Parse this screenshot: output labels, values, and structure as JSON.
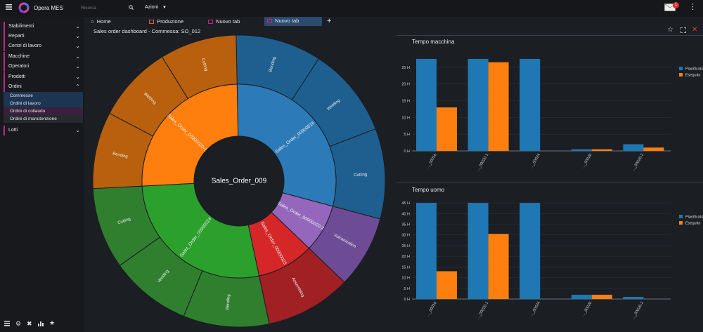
{
  "app": {
    "name": "Opera MES"
  },
  "header": {
    "search_placeholder": "Ricerca",
    "actions_label": "Azioni",
    "mail_badge": "1"
  },
  "sidebar": {
    "items": [
      "Stabilimenti",
      "Reparti",
      "Centri di lavoro",
      "Macchine",
      "Operatori",
      "Prodotti",
      "Ordini",
      "Lotti"
    ],
    "sub_items": [
      "Commesse",
      "Ordini di lavoro",
      "Ordini di collaudo",
      "Ordini di manutenzione"
    ]
  },
  "tabs": [
    "Home",
    "Produzione",
    "Nuovo tab",
    "Nuovo tab"
  ],
  "dashboard": {
    "title": "Sales order dashboard - Commessa: SO_012"
  },
  "sunburst": {
    "center": "Sales_Order_009",
    "inner": [
      {
        "label": "Sales_Order_00900016",
        "value": 29.5,
        "color": "#2c7ab8"
      },
      {
        "label": "Sales_Order_00900020-2",
        "value": 8,
        "color": "#9467bd"
      },
      {
        "label": "Sales_Order_00900023",
        "value": 9.5,
        "color": "#d62728"
      },
      {
        "label": "Sales_Order_00900024",
        "value": 27.5,
        "color": "#2ca02c"
      },
      {
        "label": "Sales_Order_00900020-1",
        "value": 25.5,
        "color": "#ff7f0e"
      }
    ],
    "outer": [
      {
        "label": "Bending",
        "value": 9.5,
        "color": "#1f5f8f"
      },
      {
        "label": "Welding",
        "value": 10,
        "color": "#1f5f8f"
      },
      {
        "label": "Cutting",
        "value": 10,
        "color": "#1f5f8f"
      },
      {
        "label": "Vulcanization",
        "value": 8,
        "color": "#6d4c95"
      },
      {
        "label": "Assembling",
        "value": 9.5,
        "color": "#a02024"
      },
      {
        "label": "Bending",
        "value": 9.5,
        "color": "#2f7f2f"
      },
      {
        "label": "Welding",
        "value": 9,
        "color": "#2f7f2f"
      },
      {
        "label": "Cutting",
        "value": 9,
        "color": "#2f7f2f"
      },
      {
        "label": "Bending",
        "value": 8.5,
        "color": "#b8600e"
      },
      {
        "label": "Welding",
        "value": 8.5,
        "color": "#b8600e"
      },
      {
        "label": "Cutting",
        "value": 8.5,
        "color": "#b8600e"
      }
    ]
  },
  "chart_data": [
    {
      "type": "bar",
      "title": "Tempo macchina",
      "categories": [
        "..._00016",
        "..._00020-1",
        "..._00024",
        "..._00020",
        "..._00020-2"
      ],
      "series": [
        {
          "name": "Pianificato",
          "color": "#1f77b4",
          "values": [
            27.5,
            27.5,
            27.5,
            0.5,
            2
          ]
        },
        {
          "name": "Eseguito",
          "color": "#ff7f0e",
          "values": [
            13,
            26.5,
            0,
            0.5,
            1
          ]
        }
      ],
      "ylim": [
        0,
        30
      ],
      "yticks": [
        0,
        5,
        10,
        15,
        20,
        25
      ],
      "tick_suffix": " H"
    },
    {
      "type": "bar",
      "title": "Tempo uomo",
      "categories": [
        "..._00016",
        "..._00020-1",
        "..._00024",
        "..._00020",
        "..._00020-2"
      ],
      "series": [
        {
          "name": "Pianificato",
          "color": "#1f77b4",
          "values": [
            45,
            45,
            45,
            2,
            1
          ]
        },
        {
          "name": "Eseguito",
          "color": "#ff7f0e",
          "values": [
            13,
            30.5,
            0,
            2,
            0
          ]
        }
      ],
      "ylim": [
        0,
        47
      ],
      "yticks": [
        0,
        5,
        10,
        15,
        20,
        25,
        30,
        35,
        40,
        45
      ],
      "tick_suffix": " H"
    }
  ]
}
